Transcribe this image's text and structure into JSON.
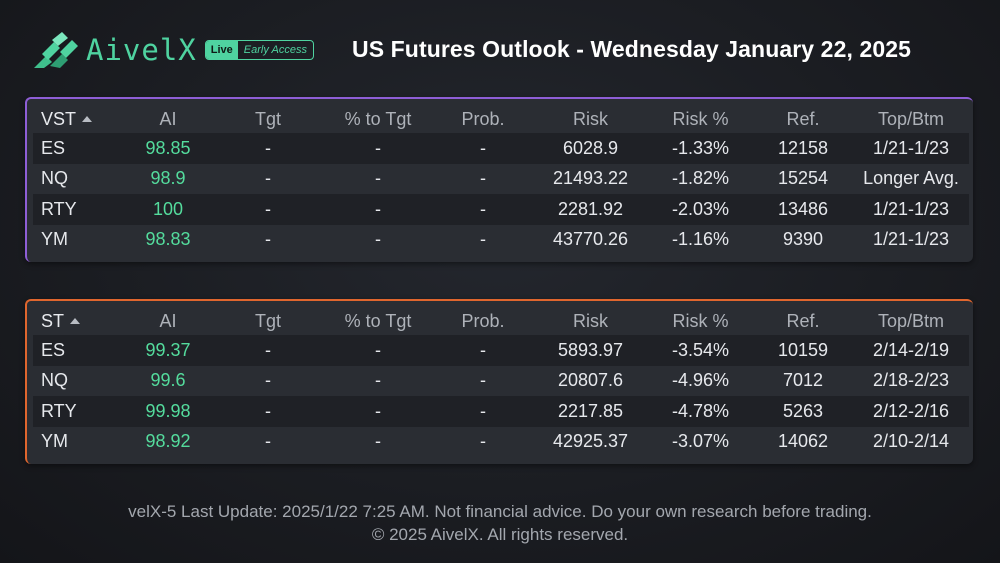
{
  "brand": {
    "name": "AivelX",
    "live_label": "Live",
    "early_label": "Early Access",
    "accent_color": "#4fd3a0"
  },
  "title": "US Futures Outlook - Wednesday January 22, 2025",
  "columns": [
    "AI",
    "Tgt",
    "% to Tgt",
    "Prob.",
    "Risk",
    "Risk %",
    "Ref.",
    "Top/Btm"
  ],
  "vst": {
    "label": "VST",
    "accent_color": "#8e5ed6",
    "rows": [
      {
        "symbol": "ES",
        "ai": "98.85",
        "tgt": "-",
        "pct_to_tgt": "-",
        "prob": "-",
        "risk": "6028.9",
        "risk_pct": "-1.33%",
        "ref": "12158",
        "top_btm": "1/21-1/23"
      },
      {
        "symbol": "NQ",
        "ai": "98.9",
        "tgt": "-",
        "pct_to_tgt": "-",
        "prob": "-",
        "risk": "21493.22",
        "risk_pct": "-1.82%",
        "ref": "15254",
        "top_btm": "Longer Avg."
      },
      {
        "symbol": "RTY",
        "ai": "100",
        "tgt": "-",
        "pct_to_tgt": "-",
        "prob": "-",
        "risk": "2281.92",
        "risk_pct": "-2.03%",
        "ref": "13486",
        "top_btm": "1/21-1/23"
      },
      {
        "symbol": "YM",
        "ai": "98.83",
        "tgt": "-",
        "pct_to_tgt": "-",
        "prob": "-",
        "risk": "43770.26",
        "risk_pct": "-1.16%",
        "ref": "9390",
        "top_btm": "1/21-1/23"
      }
    ]
  },
  "st": {
    "label": "ST",
    "accent_color": "#e0662e",
    "rows": [
      {
        "symbol": "ES",
        "ai": "99.37",
        "tgt": "-",
        "pct_to_tgt": "-",
        "prob": "-",
        "risk": "5893.97",
        "risk_pct": "-3.54%",
        "ref": "10159",
        "top_btm": "2/14-2/19"
      },
      {
        "symbol": "NQ",
        "ai": "99.6",
        "tgt": "-",
        "pct_to_tgt": "-",
        "prob": "-",
        "risk": "20807.6",
        "risk_pct": "-4.96%",
        "ref": "7012",
        "top_btm": "2/18-2/23"
      },
      {
        "symbol": "RTY",
        "ai": "99.98",
        "tgt": "-",
        "pct_to_tgt": "-",
        "prob": "-",
        "risk": "2217.85",
        "risk_pct": "-4.78%",
        "ref": "5263",
        "top_btm": "2/12-2/16"
      },
      {
        "symbol": "YM",
        "ai": "98.92",
        "tgt": "-",
        "pct_to_tgt": "-",
        "prob": "-",
        "risk": "42925.37",
        "risk_pct": "-3.07%",
        "ref": "14062",
        "top_btm": "2/10-2/14"
      }
    ]
  },
  "footer": {
    "line1": "velX-5 Last Update: 2025/1/22 7:25 AM. Not financial advice. Do your own research before trading.",
    "line2": "© 2025 AivelX. All rights reserved."
  },
  "icons": {
    "logo": "aivelx-logo-icon",
    "sort": "sort-ascending-icon"
  }
}
